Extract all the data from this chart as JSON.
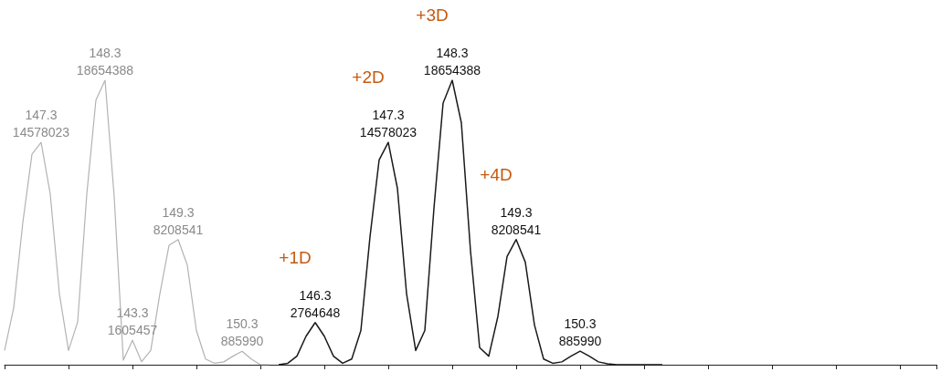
{
  "chart_data": {
    "type": "line",
    "categories": [
      null,
      null,
      null,
      null,
      null,
      null,
      null,
      null,
      null,
      null,
      null,
      null,
      null,
      null,
      null,
      null,
      null,
      null,
      null,
      null,
      null,
      null,
      null,
      null,
      null,
      null,
      null,
      null,
      null,
      null,
      null,
      null,
      null,
      null,
      null,
      null,
      null,
      null,
      null,
      null,
      null,
      null,
      null,
      null,
      null,
      null,
      null,
      null,
      null,
      null,
      null,
      null,
      null,
      null,
      null,
      null,
      null,
      null,
      null,
      null,
      null,
      null,
      null,
      null,
      null,
      null,
      null,
      null,
      null,
      null,
      null,
      null,
      null,
      null,
      null,
      null,
      null,
      null,
      null,
      null,
      null,
      null,
      null,
      null,
      null,
      null,
      null,
      null,
      null,
      null,
      null,
      null,
      null,
      null,
      null,
      null,
      null,
      null,
      null,
      null,
      null,
      null,
      null
    ],
    "series": [
      {
        "color": "#1a1a1a",
        "values": [
          null,
          null,
          null,
          null,
          null,
          null,
          null,
          null,
          null,
          null,
          null,
          null,
          null,
          null,
          null,
          null,
          null,
          null,
          null,
          null,
          null,
          null,
          null,
          null,
          null,
          null,
          null,
          null,
          null,
          null,
          0,
          93000,
          560000,
          1870000,
          2764648,
          1870000,
          560000,
          93000,
          373000,
          2240000,
          8390000,
          13430000,
          14578023,
          11570000,
          4660000,
          933000,
          2240000,
          10260000,
          17160000,
          18654388,
          15860000,
          7460000,
          1120000,
          560000,
          3170000,
          7090000,
          8208541,
          6720000,
          2610000,
          373000,
          93000,
          187000,
          560000,
          885990,
          560000,
          187000,
          56000,
          0,
          0,
          0,
          0,
          0,
          0,
          null,
          null,
          null,
          null,
          null,
          null,
          null,
          null,
          null,
          null,
          null,
          null,
          null,
          null,
          null,
          null,
          null,
          null,
          null,
          null,
          null,
          null,
          null,
          null,
          null,
          null,
          null,
          null,
          null,
          null
        ],
        "value_labels": [
          null,
          null,
          null,
          null,
          null,
          null,
          null,
          null,
          null,
          null,
          null,
          null,
          null,
          null,
          null,
          null,
          null,
          null,
          null,
          null,
          null,
          null,
          null,
          null,
          null,
          null,
          null,
          null,
          null,
          null,
          null,
          null,
          null,
          null,
          "2764648",
          null,
          null,
          null,
          null,
          null,
          null,
          null,
          "14578023",
          null,
          null,
          null,
          null,
          null,
          null,
          "18654388",
          null,
          null,
          null,
          null,
          null,
          null,
          "8208541",
          null,
          null,
          null,
          null,
          null,
          null,
          "885990",
          null,
          null,
          null,
          null,
          null,
          null,
          null,
          null,
          null,
          null,
          null,
          null,
          null,
          null,
          null,
          null,
          null,
          null,
          null,
          null,
          null,
          null,
          null,
          null,
          null,
          null,
          null,
          null,
          null,
          null,
          null,
          null,
          null,
          null,
          null,
          null,
          null,
          null,
          null
        ]
      },
      {
        "color": "#b3b3b3",
        "values": [
          930000,
          3730000,
          9330000,
          13800000,
          14578023,
          11190000,
          4660000,
          933000,
          2800000,
          11190000,
          17350000,
          18654388,
          11000000,
          300000,
          1605457,
          200000,
          933000,
          4660000,
          7830000,
          8208541,
          6530000,
          2240000,
          373000,
          93000,
          187000,
          560000,
          885990,
          373000,
          0,
          0,
          null,
          null,
          null,
          null,
          null,
          null,
          null,
          null,
          null,
          null,
          null,
          null,
          null,
          null,
          null,
          null,
          null,
          null,
          null,
          null,
          null,
          null,
          null,
          null,
          null,
          null,
          null,
          null,
          null,
          null,
          null,
          null,
          null,
          null,
          null,
          null,
          null,
          null,
          null,
          null,
          null,
          null,
          null,
          null,
          null,
          null,
          null,
          null,
          null,
          null,
          null,
          null,
          null,
          null,
          null,
          null,
          null,
          null,
          null,
          null,
          null,
          null,
          null,
          null,
          null,
          null,
          null,
          null,
          null,
          null,
          null,
          null,
          null
        ],
        "value_labels": [
          null,
          null,
          null,
          null,
          "14578023",
          null,
          null,
          null,
          null,
          null,
          null,
          "18654388",
          null,
          null,
          "1605457",
          null,
          null,
          null,
          null,
          "8208541",
          null,
          null,
          null,
          null,
          null,
          null,
          "885990",
          null,
          null,
          null,
          null,
          null,
          null,
          null,
          null,
          null,
          null,
          null,
          null,
          null,
          null,
          null,
          null,
          null,
          null,
          null,
          null,
          null,
          null,
          null,
          null,
          null,
          null,
          null,
          null,
          null,
          null,
          null,
          null,
          null,
          null,
          null,
          null,
          null,
          null,
          null,
          null,
          null,
          null,
          null,
          null,
          null,
          null,
          null,
          null,
          null,
          null,
          null,
          null,
          null,
          null,
          null,
          null,
          null,
          null,
          null,
          null,
          null,
          null,
          null,
          null,
          null,
          null,
          null,
          null,
          null,
          null,
          null,
          null,
          null,
          null,
          null,
          null
        ]
      }
    ],
    "annotations": [
      "+1D",
      "+2D",
      "+3D",
      "+4D",
      "146.3",
      "147.3",
      "148.3",
      "149.3",
      "150.3",
      "147.3",
      "148.3",
      "143.3",
      "149.3",
      "150.3"
    ],
    "marker": "none",
    "grid": false
  }
}
